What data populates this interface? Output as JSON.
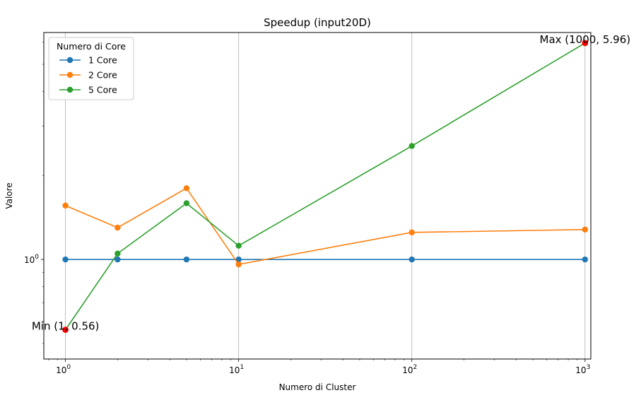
{
  "chart_data": {
    "type": "line",
    "title": "Speedup (input20D)",
    "xlabel": "Numero di Cluster",
    "ylabel": "Valore",
    "xscale": "log",
    "yscale": "log",
    "xlim": [
      0.75,
      1080
    ],
    "ylim": [
      0.44,
      6.5
    ],
    "x_ticks": [
      {
        "value": 1,
        "base": "10",
        "exp": "0"
      },
      {
        "value": 10,
        "base": "10",
        "exp": "1"
      },
      {
        "value": 100,
        "base": "10",
        "exp": "2"
      },
      {
        "value": 1000,
        "base": "10",
        "exp": "3"
      }
    ],
    "y_ticks": [
      {
        "value": 1,
        "base": "10",
        "exp": "0"
      }
    ],
    "y_minor_ticks": [
      0.5,
      0.6,
      0.7,
      0.8,
      0.9,
      2,
      3,
      4,
      5,
      6
    ],
    "grid": "x-major",
    "legend": {
      "title": "Numero di Core",
      "position": "top-left"
    },
    "x": [
      1,
      2,
      5,
      10,
      100,
      1000
    ],
    "series": [
      {
        "name": "1 Core",
        "color": "#1f77b4",
        "values": [
          1.0,
          1.0,
          1.0,
          1.0,
          1.0,
          1.0
        ]
      },
      {
        "name": "2 Core",
        "color": "#ff7f0e",
        "values": [
          1.56,
          1.3,
          1.8,
          0.96,
          1.25,
          1.28
        ]
      },
      {
        "name": "5 Core",
        "color": "#2ca02c",
        "values": [
          0.56,
          1.05,
          1.59,
          1.12,
          2.55,
          5.96
        ]
      }
    ],
    "annotations": [
      {
        "text": "Min (1, 0.56)",
        "x": 1,
        "y": 0.56,
        "marker_color": "#ff0000",
        "anchor": "center"
      },
      {
        "text": "Max (1000, 5.96)",
        "x": 1000,
        "y": 5.96,
        "marker_color": "#ff0000",
        "anchor": "center"
      }
    ]
  }
}
